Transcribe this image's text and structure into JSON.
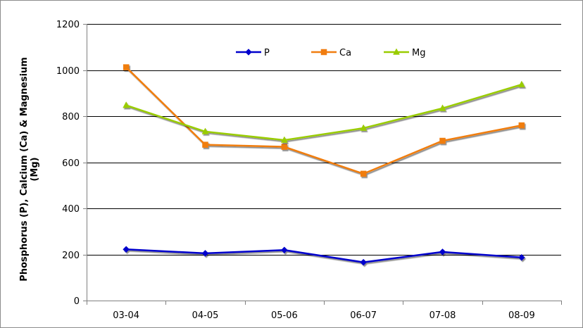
{
  "chart_data": {
    "type": "line",
    "title": "",
    "xlabel": "",
    "ylabel": "Phosphorus (P), Calcium (Ca) & Magnesium (Mg)",
    "ylabel_lines": [
      "Phosphorus (P), Calcium (Ca) & Magnesium",
      "(Mg)"
    ],
    "categories": [
      "03-04",
      "04-05",
      "05-06",
      "06-07",
      "07-08",
      "08-09"
    ],
    "ylim": [
      0,
      1200
    ],
    "yticks": [
      0,
      200,
      400,
      600,
      800,
      1000,
      1200
    ],
    "grid": true,
    "legend_position": "top-center",
    "series": [
      {
        "name": "P",
        "color": "#0000cc",
        "marker": "diamond-icon",
        "values": [
          222,
          205,
          219,
          166,
          211,
          187
        ]
      },
      {
        "name": "Ca",
        "color": "#f07d10",
        "marker": "square-icon",
        "values": [
          1012,
          676,
          667,
          550,
          693,
          760
        ]
      },
      {
        "name": "Mg",
        "color": "#99cc00",
        "marker": "triangle-icon",
        "values": [
          847,
          733,
          696,
          748,
          834,
          937
        ]
      }
    ]
  }
}
